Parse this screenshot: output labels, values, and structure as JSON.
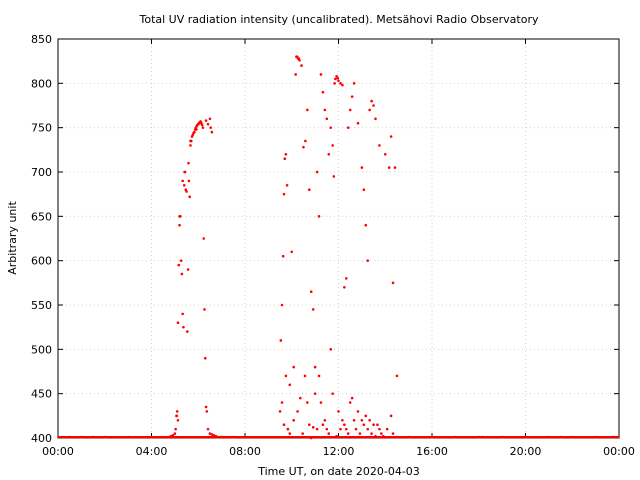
{
  "chart_data": {
    "type": "scatter",
    "title": "Total UV radiation intensity (uncalibrated). Metsähovi Radio Observatory",
    "xlabel": "Time UT, on date 2020-04-03",
    "ylabel": "Arbitrary unit",
    "xlim": [
      "00:00",
      "24:00"
    ],
    "ylim": [
      400,
      850
    ],
    "x_ticks": [
      "00:00",
      "04:00",
      "08:00",
      "12:00",
      "16:00",
      "20:00",
      "00:00"
    ],
    "y_ticks": [
      400,
      450,
      500,
      550,
      600,
      650,
      700,
      750,
      800,
      850
    ],
    "grid": true,
    "legend": "none",
    "marker_color": "#ff0000",
    "series": [
      {
        "x": [
          "04:45",
          "04:50",
          "04:55",
          "05:00",
          "05:02",
          "05:04",
          "05:06",
          "05:08",
          "05:10",
          "05:12",
          "05:14",
          "05:16",
          "05:18",
          "05:20",
          "05:22",
          "05:24",
          "05:26",
          "05:28",
          "05:30",
          "05:32",
          "05:34",
          "05:36",
          "05:38",
          "05:40",
          "05:42",
          "05:44",
          "05:46",
          "05:48",
          "05:50",
          "05:52",
          "05:54",
          "05:56",
          "05:58",
          "06:00",
          "06:02",
          "06:04",
          "06:06",
          "06:08",
          "06:10",
          "06:12",
          "06:14",
          "06:16",
          "06:18",
          "06:20",
          "06:22",
          "06:25",
          "06:30",
          "06:35",
          "06:40",
          "06:45",
          "06:50",
          "07:00",
          "07:10",
          "07:20",
          "07:30",
          "05:05",
          "05:08",
          "05:12",
          "05:20",
          "05:25",
          "05:35",
          "05:40",
          "05:55",
          "06:20",
          "06:25",
          "06:30",
          "06:32",
          "06:35",
          "09:30",
          "09:32",
          "09:35",
          "09:38",
          "09:40",
          "09:42",
          "09:45",
          "09:48",
          "09:50",
          "09:55",
          "10:00",
          "10:05",
          "10:10",
          "10:12",
          "10:14",
          "10:16",
          "10:18",
          "10:20",
          "10:25",
          "10:30",
          "10:35",
          "10:40",
          "10:45",
          "10:50",
          "10:55",
          "11:00",
          "11:05",
          "11:10",
          "11:15",
          "11:20",
          "11:25",
          "11:30",
          "11:35",
          "11:40",
          "11:45",
          "11:48",
          "11:50",
          "11:52",
          "11:55",
          "11:58",
          "12:00",
          "12:05",
          "12:10",
          "12:15",
          "12:20",
          "12:25",
          "12:30",
          "12:35",
          "12:40",
          "12:50",
          "13:00",
          "13:05",
          "13:10",
          "13:15",
          "13:20",
          "13:25",
          "13:30",
          "13:35",
          "13:45",
          "14:00",
          "14:10",
          "14:15",
          "14:20",
          "14:25",
          "14:30",
          "09:35",
          "09:40",
          "09:45",
          "09:50",
          "09:55",
          "10:05",
          "10:15",
          "10:22",
          "10:28",
          "10:34",
          "10:40",
          "10:45",
          "10:50",
          "10:55",
          "11:00",
          "11:05",
          "11:10",
          "11:15",
          "11:20",
          "11:25",
          "11:30",
          "11:35",
          "11:40",
          "11:45",
          "11:55",
          "12:00",
          "12:05",
          "12:10",
          "12:15",
          "12:20",
          "12:25",
          "12:30",
          "12:35",
          "12:40",
          "12:45",
          "12:50",
          "12:55",
          "13:00",
          "13:05",
          "13:10",
          "13:15",
          "13:20",
          "13:25",
          "13:30",
          "13:35",
          "13:40",
          "13:45",
          "13:50",
          "13:55",
          "14:05",
          "14:15",
          "14:20",
          "00:30",
          "01:00",
          "01:30",
          "02:00",
          "03:00",
          "04:00",
          "14:30",
          "15:00",
          "16:00",
          "17:00",
          "18:00",
          "18:10",
          "19:00",
          "20:00",
          "21:00",
          "21:30",
          "22:00",
          "23:00",
          "23:45"
        ],
        "y": [
          401,
          402,
          403,
          405,
          410,
          425,
          430,
          530,
          595,
          640,
          650,
          600,
          585,
          540,
          525,
          685,
          700,
          680,
          678,
          520,
          590,
          690,
          672,
          730,
          735,
          740,
          742,
          744,
          745,
          748,
          750,
          752,
          753,
          754,
          755,
          756,
          757,
          755,
          753,
          750,
          625,
          545,
          490,
          435,
          430,
          410,
          405,
          404,
          403,
          402,
          401,
          401,
          401,
          401,
          401,
          425,
          420,
          650,
          690,
          700,
          710,
          735,
          748,
          758,
          754,
          760,
          750,
          745,
          430,
          510,
          550,
          605,
          675,
          715,
          720,
          685,
          410,
          460,
          610,
          480,
          810,
          830,
          830,
          828,
          828,
          826,
          820,
          728,
          735,
          770,
          680,
          565,
          545,
          480,
          700,
          650,
          810,
          790,
          770,
          760,
          720,
          750,
          730,
          695,
          800,
          805,
          808,
          806,
          803,
          800,
          798,
          570,
          580,
          750,
          770,
          785,
          800,
          755,
          705,
          680,
          640,
          600,
          770,
          780,
          775,
          760,
          730,
          720,
          705,
          740,
          575,
          705,
          470,
          440,
          415,
          470,
          410,
          405,
          420,
          430,
          445,
          405,
          470,
          440,
          415,
          400,
          412,
          450,
          410,
          470,
          440,
          415,
          420,
          410,
          405,
          500,
          450,
          402,
          430,
          410,
          420,
          415,
          410,
          405,
          440,
          445,
          420,
          410,
          430,
          405,
          420,
          415,
          425,
          410,
          420,
          405,
          415,
          402,
          415,
          410,
          405,
          402,
          410,
          425,
          405,
          401,
          401,
          401,
          401,
          401,
          401,
          401,
          401,
          401,
          401,
          401,
          401,
          401,
          401,
          401,
          401,
          401,
          401,
          401
        ]
      }
    ]
  }
}
